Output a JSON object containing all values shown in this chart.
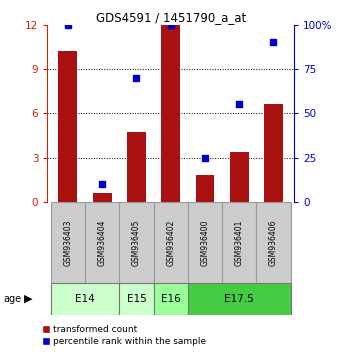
{
  "title": "GDS4591 / 1451790_a_at",
  "categories": [
    "GSM936403",
    "GSM936404",
    "GSM936405",
    "GSM936402",
    "GSM936400",
    "GSM936401",
    "GSM936406"
  ],
  "red_values": [
    10.2,
    0.6,
    4.7,
    12.0,
    1.8,
    3.4,
    6.6
  ],
  "blue_values": [
    100,
    10,
    70,
    100,
    25,
    55,
    90
  ],
  "ylim_left": [
    0,
    12
  ],
  "ylim_right": [
    0,
    100
  ],
  "yticks_left": [
    0,
    3,
    6,
    9,
    12
  ],
  "yticks_right": [
    0,
    25,
    50,
    75,
    100
  ],
  "age_groups": [
    {
      "label": "E14",
      "start": 0,
      "end": 2,
      "color": "#ccffcc"
    },
    {
      "label": "E15",
      "start": 2,
      "end": 3,
      "color": "#ccffcc"
    },
    {
      "label": "E16",
      "start": 3,
      "end": 4,
      "color": "#99ff99"
    },
    {
      "label": "E17.5",
      "start": 4,
      "end": 7,
      "color": "#44cc44"
    }
  ],
  "bar_color": "#aa1111",
  "dot_color": "#0000cc",
  "bg_color": "#ffffff",
  "left_tick_color": "#cc2200",
  "right_tick_color": "#0000cc",
  "legend_red_label": "transformed count",
  "legend_blue_label": "percentile rank within the sample",
  "label_box_color": "#cccccc",
  "label_box_edge": "#999999"
}
